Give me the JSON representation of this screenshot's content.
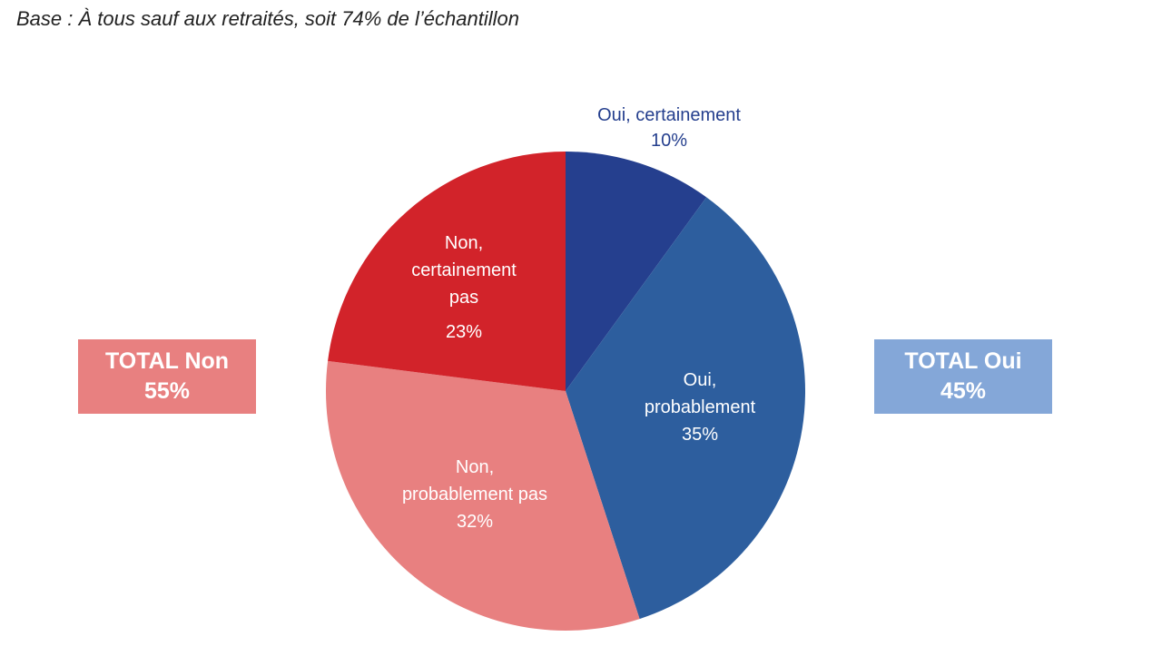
{
  "base_note": "Base : À tous sauf aux retraités, soit 74% de l’échantillon",
  "totals": {
    "non": {
      "label": "TOTAL Non",
      "value": "55%",
      "color": "#e88080"
    },
    "oui": {
      "label": "TOTAL Oui",
      "value": "45%",
      "color": "#84a7d8"
    }
  },
  "chart_data": {
    "type": "pie",
    "title": "",
    "start_angle_deg": 0,
    "direction": "clockwise",
    "slices": [
      {
        "label_lines": [
          "Oui, certainement"
        ],
        "value": 10,
        "value_label": "10%",
        "color": "#253f8e",
        "label_color": "#253f8e",
        "label_placement": "outside"
      },
      {
        "label_lines": [
          "Oui,",
          "probablement"
        ],
        "value": 35,
        "value_label": "35%",
        "color": "#2d5e9e",
        "label_color": "#ffffff",
        "label_placement": "inside"
      },
      {
        "label_lines": [
          "Non,",
          "probablement pas"
        ],
        "value": 32,
        "value_label": "32%",
        "color": "#e88080",
        "label_color": "#ffffff",
        "label_placement": "inside"
      },
      {
        "label_lines": [
          "Non,",
          "certainement",
          "pas"
        ],
        "value": 23,
        "value_label": "23%",
        "color": "#d2232a",
        "label_color": "#ffffff",
        "label_placement": "inside"
      }
    ]
  }
}
